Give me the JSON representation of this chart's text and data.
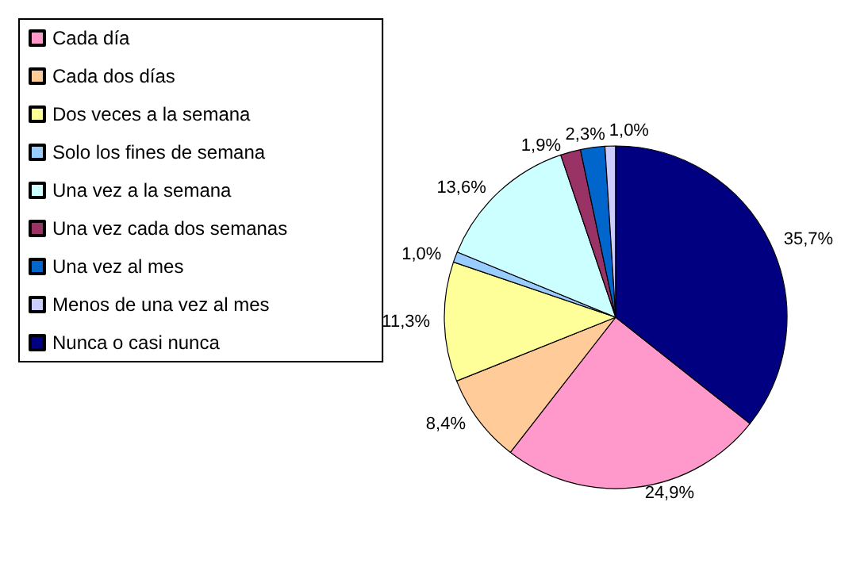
{
  "chart_data": {
    "type": "pie",
    "categories": [
      "Cada día",
      "Cada dos días",
      "Dos veces a la semana",
      "Solo los fines de semana",
      "Una vez a la semana",
      "Una vez cada dos semanas",
      "Una vez al mes",
      "Menos de una vez al mes",
      "Nunca o casi nunca"
    ],
    "values": [
      24.9,
      8.4,
      11.3,
      1.0,
      13.6,
      1.9,
      2.3,
      1.0,
      35.7
    ],
    "value_labels": [
      "24,9%",
      "8,4%",
      "11,3%",
      "1,0%",
      "13,6%",
      "1,9%",
      "2,3%",
      "1,0%",
      "35,7%"
    ],
    "colors": [
      "#ff99cc",
      "#ffcc99",
      "#ffff99",
      "#99ccff",
      "#ccffff",
      "#993366",
      "#0066cc",
      "#ccccff",
      "#000080"
    ],
    "legend": "left"
  }
}
